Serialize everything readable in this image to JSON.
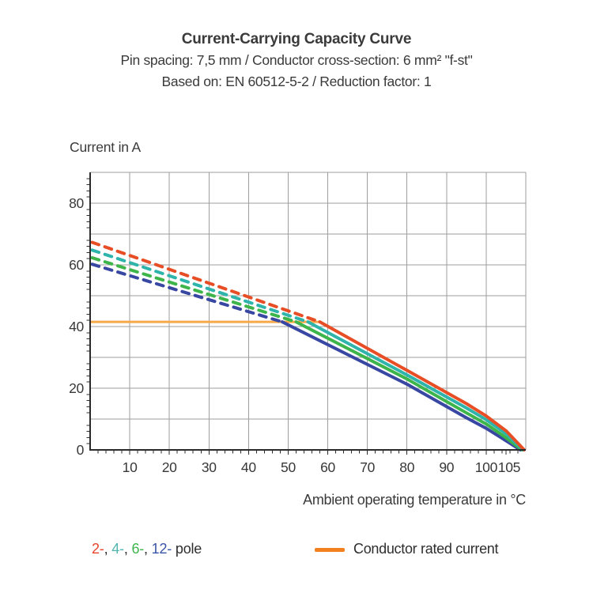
{
  "titles": {
    "line1": "Current-Carrying Capacity Curve",
    "line2": "Pin spacing: 7,5 mm / Conductor cross-section: 6 mm² \"f-st\"",
    "line3": "Based on: EN 60512-5-2 / Reduction factor: 1"
  },
  "axes": {
    "y_title": "Current in A",
    "x_title": "Ambient operating temperature in °C"
  },
  "legend": {
    "poles": [
      {
        "label": "2-",
        "color": "#e8452c"
      },
      {
        "label": "4-",
        "color": "#52b7ae"
      },
      {
        "label": "6-",
        "color": "#3db54a"
      },
      {
        "label": "12-",
        "color": "#3a55a8"
      }
    ],
    "separator": ", ",
    "pole_suffix": " pole",
    "rated_label": "Conductor rated current",
    "rated_swatch_color": "#f2801e"
  },
  "chart_data": {
    "type": "line",
    "title": "Current-Carrying Capacity Curve",
    "xlabel": "Ambient operating temperature in °C",
    "ylabel": "Current in A",
    "xlim": [
      0,
      110
    ],
    "ylim": [
      0,
      90
    ],
    "grid_step": 10,
    "grid_on": true,
    "grid_color": "#9e9e9e",
    "axis_color": "#2b2b2b",
    "x_tick_labels": [
      10,
      20,
      30,
      40,
      50,
      60,
      70,
      80,
      90,
      100,
      105
    ],
    "y_tick_labels": [
      0,
      20,
      40,
      60,
      80
    ],
    "minor_tick_step": 2,
    "rated_current": {
      "value": 41.5,
      "x_end": 58,
      "color": "#f8a947",
      "label": "Conductor rated current"
    },
    "series": [
      {
        "name": "12-pole",
        "color": "#3847a2",
        "dashed": [
          [
            0.5,
            60.2
          ],
          [
            48.5,
            41.5
          ]
        ],
        "solid": [
          [
            48.5,
            41.5
          ],
          [
            80,
            21.3
          ],
          [
            95,
            10.4
          ],
          [
            100,
            7.0
          ],
          [
            104,
            3.8
          ],
          [
            108.6,
            0
          ]
        ]
      },
      {
        "name": "6-pole",
        "color": "#3db54a",
        "dashed": [
          [
            0.5,
            62.3
          ],
          [
            52,
            41.5
          ]
        ],
        "solid": [
          [
            52,
            41.5
          ],
          [
            80,
            23.0
          ],
          [
            95,
            12.0
          ],
          [
            100,
            8.4
          ],
          [
            104.5,
            4.4
          ],
          [
            109,
            0
          ]
        ]
      },
      {
        "name": "4-pole",
        "color": "#2fb4ab",
        "dashed": [
          [
            0.5,
            64.8
          ],
          [
            55,
            41.5
          ]
        ],
        "solid": [
          [
            55,
            41.5
          ],
          [
            80,
            24.3
          ],
          [
            95,
            13.6
          ],
          [
            100,
            9.8
          ],
          [
            105,
            5.2
          ],
          [
            109.3,
            0
          ]
        ]
      },
      {
        "name": "2-pole",
        "color": "#e84e25",
        "dashed": [
          [
            0.5,
            67.3
          ],
          [
            58,
            41.5
          ]
        ],
        "solid": [
          [
            58,
            41.5
          ],
          [
            80,
            25.8
          ],
          [
            95,
            15.0
          ],
          [
            100,
            11.0
          ],
          [
            105,
            6.2
          ],
          [
            109.6,
            0
          ]
        ]
      }
    ]
  }
}
